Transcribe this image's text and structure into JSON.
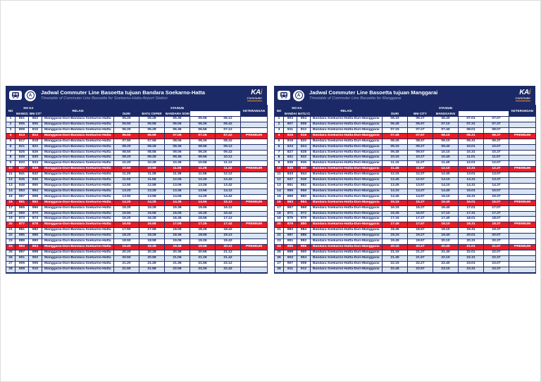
{
  "page": {
    "kind": "timetable-sheet",
    "colors": {
      "navy": "#1b2a66",
      "row_alt": "#d9e4f2",
      "highlight_red": "#ec1c24",
      "kai_orange": "#f68b1f",
      "subtitle_gray": "#9ba7c9"
    }
  },
  "logo": {
    "kai": "KA",
    "kai_accent": "i",
    "commuter": "Commuter",
    "train_icon": "commuter-train-icon",
    "roundel_letter": "A"
  },
  "columns": {
    "no": "NO",
    "noka": "NO KA",
    "relasi": "RELASI",
    "stasiun": "STASIUN",
    "keterangan": "KETERANGAN"
  },
  "tables": [
    {
      "title": "Jadwal Commuter Line Basoetta tujuan Bandara Soekarno-Hatta",
      "subtitle": "Timetable of Commuter Line Basoetta for Soekarno-Hatta Airport Station",
      "stations": [
        "MANGGARAI",
        "BNI CITY",
        "DURI",
        "BATU CEPER",
        "BANDARA SOEKARNO-HATTA"
      ],
      "relasi": "Manggarai-Duri-Bandara Soekarno-Hatta",
      "highlight_note": "PREMIUM",
      "rows": [
        {
          "no": 1,
          "ka": [
            "801",
            "802"
          ],
          "times": [
            "05.20",
            "05.28",
            "05.36",
            "05.56",
            "06.12"
          ],
          "red": false
        },
        {
          "no": 2,
          "ka": [
            "805",
            "806"
          ],
          "times": [
            "05.50",
            "05.58",
            "06.06",
            "06.26",
            "06.42"
          ],
          "red": false
        },
        {
          "no": 3,
          "ka": [
            "809",
            "810"
          ],
          "times": [
            "06.20",
            "06.28",
            "06.36",
            "06.56",
            "07.12"
          ],
          "red": false
        },
        {
          "no": 4,
          "ka": [
            "813",
            "814"
          ],
          "times": [
            "06.50",
            "06.58",
            "07.06",
            "07.26",
            "07.42"
          ],
          "red": true
        },
        {
          "no": 5,
          "ka": [
            "817",
            "818"
          ],
          "times": [
            "07.50",
            "07.58",
            "08.06",
            "08.26",
            "08.42"
          ],
          "red": false
        },
        {
          "no": 6,
          "ka": [
            "821",
            "822"
          ],
          "times": [
            "08.20",
            "08.28",
            "08.36",
            "08.56",
            "09.12"
          ],
          "red": false
        },
        {
          "no": 7,
          "ka": [
            "825",
            "826"
          ],
          "times": [
            "08.50",
            "08.58",
            "09.06",
            "09.26",
            "09.42"
          ],
          "red": false
        },
        {
          "no": 8,
          "ka": [
            "829",
            "830"
          ],
          "times": [
            "09.20",
            "09.28",
            "09.36",
            "09.56",
            "10.12"
          ],
          "red": false
        },
        {
          "no": 9,
          "ka": [
            "833",
            "834"
          ],
          "times": [
            "10.20",
            "10.28",
            "10.36",
            "10.56",
            "11.12"
          ],
          "red": false
        },
        {
          "no": 10,
          "ka": [
            "837",
            "838"
          ],
          "times": [
            "10.50",
            "10.58",
            "11.06",
            "11.26",
            "11.42"
          ],
          "red": true
        },
        {
          "no": 11,
          "ka": [
            "841",
            "842"
          ],
          "times": [
            "11.20",
            "11.28",
            "11.36",
            "11.56",
            "12.12"
          ],
          "red": false
        },
        {
          "no": 12,
          "ka": [
            "845",
            "846"
          ],
          "times": [
            "11.50",
            "11.58",
            "12.06",
            "12.26",
            "12.42"
          ],
          "red": false
        },
        {
          "no": 13,
          "ka": [
            "849",
            "850"
          ],
          "times": [
            "12.50",
            "12.58",
            "13.06",
            "13.26",
            "13.42"
          ],
          "red": false
        },
        {
          "no": 14,
          "ka": [
            "853",
            "854"
          ],
          "times": [
            "13.20",
            "13.28",
            "13.36",
            "13.56",
            "14.12"
          ],
          "red": false
        },
        {
          "no": 15,
          "ka": [
            "857",
            "858"
          ],
          "times": [
            "13.50",
            "13.58",
            "14.06",
            "14.26",
            "14.42"
          ],
          "red": false
        },
        {
          "no": 16,
          "ka": [
            "861",
            "862"
          ],
          "times": [
            "14.20",
            "14.28",
            "14.36",
            "14.56",
            "15.12"
          ],
          "red": true
        },
        {
          "no": 17,
          "ka": [
            "865",
            "866"
          ],
          "times": [
            "15.20",
            "15.28",
            "15.36",
            "15.56",
            "16.12"
          ],
          "red": false
        },
        {
          "no": 18,
          "ka": [
            "869",
            "870"
          ],
          "times": [
            "15.50",
            "15.58",
            "16.06",
            "16.26",
            "16.42"
          ],
          "red": false
        },
        {
          "no": 19,
          "ka": [
            "873",
            "874"
          ],
          "times": [
            "16.20",
            "16.28",
            "16.36",
            "16.56",
            "17.12"
          ],
          "red": false
        },
        {
          "no": 20,
          "ka": [
            "877",
            "878"
          ],
          "times": [
            "16.50",
            "16.58",
            "17.06",
            "17.26",
            "17.42"
          ],
          "red": true
        },
        {
          "no": 21,
          "ka": [
            "881",
            "882"
          ],
          "times": [
            "17.50",
            "17.58",
            "18.06",
            "18.26",
            "18.42"
          ],
          "red": false
        },
        {
          "no": 22,
          "ka": [
            "885",
            "886"
          ],
          "times": [
            "18.20",
            "18.28",
            "18.36",
            "18.56",
            "19.12"
          ],
          "red": false
        },
        {
          "no": 23,
          "ka": [
            "889",
            "890"
          ],
          "times": [
            "18.50",
            "18.58",
            "19.06",
            "19.26",
            "19.42"
          ],
          "red": false
        },
        {
          "no": 24,
          "ka": [
            "893",
            "894"
          ],
          "times": [
            "19.20",
            "19.28",
            "19.36",
            "19.56",
            "20.12"
          ],
          "red": true
        },
        {
          "no": 25,
          "ka": [
            "897",
            "898"
          ],
          "times": [
            "20.20",
            "20.28",
            "20.36",
            "20.56",
            "21.12"
          ],
          "red": false
        },
        {
          "no": 26,
          "ka": [
            "901",
            "902"
          ],
          "times": [
            "20.50",
            "20.58",
            "21.06",
            "21.26",
            "21.42"
          ],
          "red": false
        },
        {
          "no": 27,
          "ka": [
            "905",
            "906"
          ],
          "times": [
            "21.20",
            "21.28",
            "21.36",
            "21.56",
            "22.12"
          ],
          "red": false
        },
        {
          "no": 28,
          "ka": [
            "909",
            "910"
          ],
          "times": [
            "21.50",
            "21.58",
            "22.06",
            "22.26",
            "22.42"
          ],
          "red": false
        }
      ]
    },
    {
      "title": "Jadwal Commuter Line Basoetta tujuan Manggarai",
      "subtitle": "Timetable of Commuter Line Basoetta for Manggarai",
      "stations": [
        "BANDARA SOEKARNO-HATTA",
        "BATU CEPER",
        "DURI",
        "BNI CITY",
        "MANGGARAI"
      ],
      "relasi": "Bandara Soekarno-Hatta-Duri-Manggarai",
      "highlight_note": "PREMIUM",
      "rows": [
        {
          "no": 1,
          "ka": [
            "803",
            "804"
          ],
          "times": [
            "06.15",
            "06.27",
            "06.40",
            "07.01",
            "07.07"
          ],
          "red": false
        },
        {
          "no": 2,
          "ka": [
            "807",
            "808"
          ],
          "times": [
            "06.45",
            "06.57",
            "07.10",
            "07.31",
            "07.37"
          ],
          "red": false
        },
        {
          "no": 3,
          "ka": [
            "811",
            "812"
          ],
          "times": [
            "07.15",
            "07.27",
            "07.40",
            "08.01",
            "08.07"
          ],
          "red": false
        },
        {
          "no": 4,
          "ka": [
            "815",
            "816"
          ],
          "times": [
            "07.45",
            "07.57",
            "08.10",
            "08.31",
            "08.37"
          ],
          "red": true
        },
        {
          "no": 5,
          "ka": [
            "819",
            "820"
          ],
          "times": [
            "08.45",
            "08.57",
            "09.10",
            "09.31",
            "09.37"
          ],
          "red": false
        },
        {
          "no": 6,
          "ka": [
            "823",
            "824"
          ],
          "times": [
            "09.15",
            "09.27",
            "09.40",
            "10.01",
            "10.07"
          ],
          "red": false
        },
        {
          "no": 7,
          "ka": [
            "827",
            "828"
          ],
          "times": [
            "09.45",
            "09.57",
            "10.10",
            "10.31",
            "10.37"
          ],
          "red": false
        },
        {
          "no": 8,
          "ka": [
            "831",
            "832"
          ],
          "times": [
            "10.15",
            "10.27",
            "10.40",
            "11.01",
            "11.07"
          ],
          "red": false
        },
        {
          "no": 9,
          "ka": [
            "835",
            "836"
          ],
          "times": [
            "11.15",
            "11.27",
            "11.40",
            "12.01",
            "12.07"
          ],
          "red": false
        },
        {
          "no": 10,
          "ka": [
            "839",
            "840"
          ],
          "times": [
            "11.45",
            "11.57",
            "12.10",
            "12.31",
            "12.37"
          ],
          "red": true
        },
        {
          "no": 11,
          "ka": [
            "843",
            "844"
          ],
          "times": [
            "12.15",
            "12.27",
            "12.40",
            "13.01",
            "13.07"
          ],
          "red": false
        },
        {
          "no": 12,
          "ka": [
            "847",
            "848"
          ],
          "times": [
            "12.45",
            "12.57",
            "13.10",
            "13.31",
            "13.37"
          ],
          "red": false
        },
        {
          "no": 13,
          "ka": [
            "851",
            "852"
          ],
          "times": [
            "13.45",
            "13.57",
            "14.10",
            "14.31",
            "14.37"
          ],
          "red": false
        },
        {
          "no": 14,
          "ka": [
            "855",
            "856"
          ],
          "times": [
            "14.15",
            "14.27",
            "14.40",
            "15.01",
            "15.07"
          ],
          "red": false
        },
        {
          "no": 15,
          "ka": [
            "859",
            "860"
          ],
          "times": [
            "14.45",
            "14.57",
            "15.10",
            "15.31",
            "15.37"
          ],
          "red": false
        },
        {
          "no": 16,
          "ka": [
            "863",
            "864"
          ],
          "times": [
            "15.15",
            "15.27",
            "15.40",
            "16.01",
            "16.07"
          ],
          "red": true
        },
        {
          "no": 17,
          "ka": [
            "867",
            "868"
          ],
          "times": [
            "16.15",
            "16.27",
            "16.40",
            "17.01",
            "17.07"
          ],
          "red": false
        },
        {
          "no": 18,
          "ka": [
            "871",
            "872"
          ],
          "times": [
            "16.45",
            "16.57",
            "17.10",
            "17.31",
            "17.37"
          ],
          "red": false
        },
        {
          "no": 19,
          "ka": [
            "875",
            "876"
          ],
          "times": [
            "17.15",
            "17.27",
            "17.40",
            "18.01",
            "18.07"
          ],
          "red": false
        },
        {
          "no": 20,
          "ka": [
            "879",
            "880"
          ],
          "times": [
            "17.45",
            "17.57",
            "18.10",
            "18.31",
            "18.37"
          ],
          "red": true
        },
        {
          "no": 21,
          "ka": [
            "883",
            "884"
          ],
          "times": [
            "18.45",
            "18.57",
            "19.10",
            "19.31",
            "19.37"
          ],
          "red": false
        },
        {
          "no": 22,
          "ka": [
            "887",
            "888"
          ],
          "times": [
            "19.15",
            "19.27",
            "19.40",
            "20.01",
            "20.07"
          ],
          "red": false
        },
        {
          "no": 23,
          "ka": [
            "891",
            "892"
          ],
          "times": [
            "19.45",
            "19.57",
            "20.10",
            "20.31",
            "20.37"
          ],
          "red": false
        },
        {
          "no": 24,
          "ka": [
            "895",
            "896"
          ],
          "times": [
            "20.15",
            "20.27",
            "20.40",
            "21.01",
            "21.07"
          ],
          "red": true
        },
        {
          "no": 25,
          "ka": [
            "899",
            "900"
          ],
          "times": [
            "21.15",
            "21.27",
            "21.40",
            "22.01",
            "22.07"
          ],
          "red": false
        },
        {
          "no": 26,
          "ka": [
            "903",
            "904"
          ],
          "times": [
            "21.45",
            "21.57",
            "22.10",
            "22.31",
            "22.37"
          ],
          "red": false
        },
        {
          "no": 27,
          "ka": [
            "907",
            "908"
          ],
          "times": [
            "22.15",
            "22.27",
            "22.40",
            "23.01",
            "23.07"
          ],
          "red": false
        },
        {
          "no": 28,
          "ka": [
            "911",
            "912"
          ],
          "times": [
            "22.45",
            "22.57",
            "23.10",
            "23.31",
            "23.37"
          ],
          "red": false
        }
      ]
    }
  ]
}
